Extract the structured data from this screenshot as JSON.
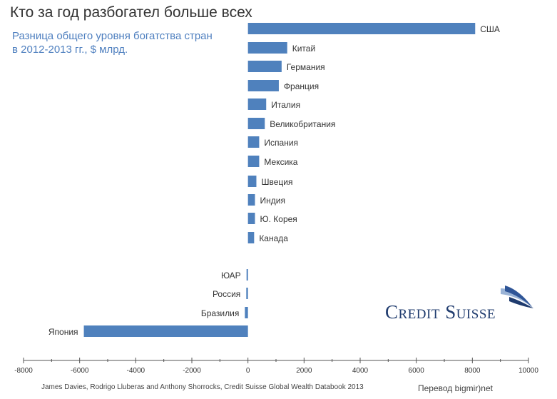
{
  "title": "Кто за год разбогател больше всех",
  "subtitle": [
    "Разница общего уровня богатства стран",
    "в 2012-2013 гг., $ млрд."
  ],
  "source": "James Davies, Rodrigo Lluberas and Anthony Shorrocks, Credit Suisse Global Wealth Databook 2013",
  "credit": "Перевод bigmir)net",
  "logo": {
    "text": "Credit Suisse",
    "icon": "sails-icon"
  },
  "colors": {
    "bar": "#4f81bd",
    "axis": "#555555",
    "title": "#333333",
    "subtitle": "#4e7fbf"
  },
  "chart_data": {
    "type": "bar",
    "orientation": "horizontal",
    "categories": [
      "США",
      "Китай",
      "Германия",
      "Франция",
      "Италия",
      "Великобритания",
      "Испания",
      "Мексика",
      "Швеция",
      "Индия",
      "Ю. Корея",
      "Канада",
      "ЮАР",
      "Россия",
      "Бразилия",
      "Япония"
    ],
    "values": [
      8100,
      1400,
      1200,
      1100,
      650,
      600,
      400,
      400,
      300,
      250,
      250,
      220,
      -50,
      -60,
      -110,
      -5850
    ],
    "xlim": [
      -8000,
      10000
    ],
    "xticks": [
      -8000,
      -6000,
      -4000,
      -2000,
      0,
      2000,
      4000,
      6000,
      8000,
      10000
    ],
    "xtick_labels": [
      "-8000",
      "-6000",
      "-4000",
      "-2000",
      "0",
      "2000",
      "4000",
      "6000",
      "8000",
      "10000"
    ],
    "xlabel": "",
    "ylabel": "",
    "grid": false,
    "legend": "none"
  }
}
